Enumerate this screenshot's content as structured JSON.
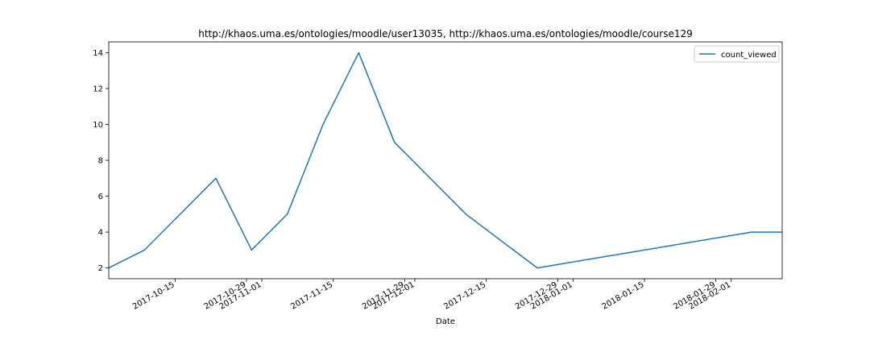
{
  "chart_data": {
    "type": "line",
    "title": "http://khaos.uma.es/ontologies/moodle/user13035, http://khaos.uma.es/ontologies/moodle/course129",
    "xlabel": "Date",
    "ylabel": "",
    "x_type": "date",
    "xlim": [
      "2017-10-02",
      "2018-02-11"
    ],
    "ylim": [
      1.4,
      14.6
    ],
    "y_ticks": [
      2,
      4,
      6,
      8,
      10,
      12,
      14
    ],
    "x_ticks": [
      {
        "date": "2017-10-15",
        "label": "2017-10-15"
      },
      {
        "date": "2017-10-29",
        "label": "2017-10-29"
      },
      {
        "date": "2017-11-01",
        "label": "2017-11-01"
      },
      {
        "date": "2017-11-15",
        "label": "2017-11-15"
      },
      {
        "date": "2017-11-29",
        "label": "2017-11-29"
      },
      {
        "date": "2017-12-01",
        "label": "2017-12-01"
      },
      {
        "date": "2017-12-15",
        "label": "2017-12-15"
      },
      {
        "date": "2017-12-29",
        "label": "2017-12-29"
      },
      {
        "date": "2018-01-01",
        "label": "2018-01-01"
      },
      {
        "date": "2018-01-15",
        "label": "2018-01-15"
      },
      {
        "date": "2018-01-29",
        "label": "2018-01-29"
      },
      {
        "date": "2018-02-01",
        "label": "2018-02-01"
      }
    ],
    "series": [
      {
        "name": "count_viewed",
        "color": "#1f77b4",
        "points": [
          {
            "x": "2017-10-02",
            "y": 2
          },
          {
            "x": "2017-10-09",
            "y": 3
          },
          {
            "x": "2017-10-23",
            "y": 7
          },
          {
            "x": "2017-10-30",
            "y": 3
          },
          {
            "x": "2017-11-06",
            "y": 5
          },
          {
            "x": "2017-11-13",
            "y": 10
          },
          {
            "x": "2017-11-20",
            "y": 14
          },
          {
            "x": "2017-11-27",
            "y": 9
          },
          {
            "x": "2017-12-11",
            "y": 5
          },
          {
            "x": "2017-12-25",
            "y": 2
          },
          {
            "x": "2018-02-05",
            "y": 4
          },
          {
            "x": "2018-02-11",
            "y": 4
          }
        ]
      }
    ],
    "legend_position": "top-right",
    "grid": false
  }
}
